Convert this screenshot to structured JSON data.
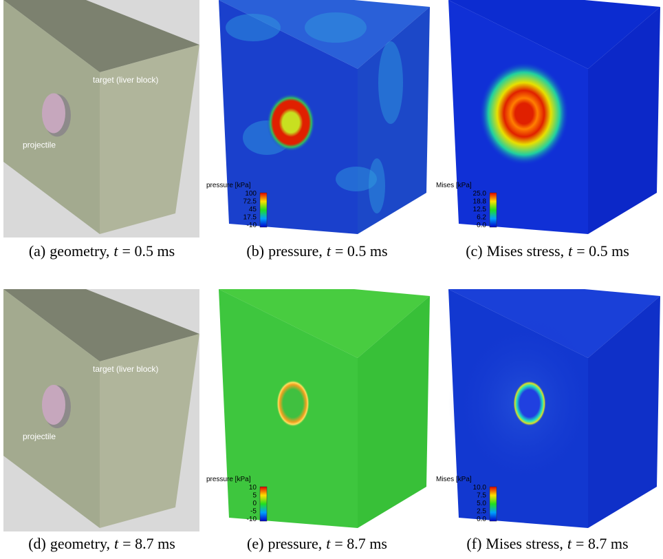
{
  "panels": [
    {
      "caption": {
        "label": "(a)",
        "text": "geometry,",
        "var": "t",
        "rest": "= 0.5 ms"
      },
      "annotations": [
        "target (liver block)",
        "projectile"
      ]
    },
    {
      "caption": {
        "label": "(b)",
        "text": "pressure,",
        "var": "t",
        "rest": "= 0.5 ms"
      },
      "colorbar": {
        "title": "pressure [kPa]",
        "ticks": [
          "100",
          "72.5",
          "45",
          "17.5",
          "-10"
        ]
      }
    },
    {
      "caption": {
        "label": "(c)",
        "text": "Mises stress,",
        "var": "t",
        "rest": "= 0.5 ms"
      },
      "colorbar": {
        "title": "Mises [kPa]",
        "ticks": [
          "25.0",
          "18.8",
          "12.5",
          "6.2",
          "0.0"
        ]
      }
    },
    {
      "caption": {
        "label": "(d)",
        "text": "geometry,",
        "var": "t",
        "rest": "= 8.7 ms"
      },
      "annotations": [
        "target (liver block)",
        "projectile"
      ]
    },
    {
      "caption": {
        "label": "(e)",
        "text": "pressure,",
        "var": "t",
        "rest": "= 8.7 ms"
      },
      "colorbar": {
        "title": "pressure [kPa]",
        "ticks": [
          "10",
          "5",
          "0",
          "-5",
          "-10"
        ]
      }
    },
    {
      "caption": {
        "label": "(f)",
        "text": "Mises stress,",
        "var": "t",
        "rest": "= 8.7 ms"
      },
      "colorbar": {
        "title": "Mises [kPa]",
        "ticks": [
          "10.0",
          "7.5",
          "5.0",
          "2.5",
          "0.0"
        ]
      }
    }
  ]
}
